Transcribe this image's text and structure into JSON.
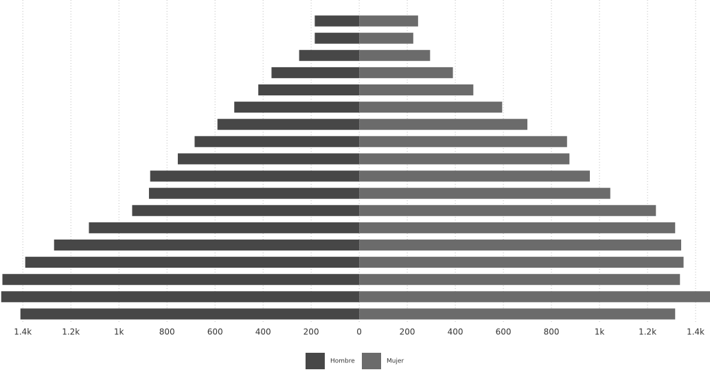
{
  "chart_data": {
    "type": "pyramid",
    "series": [
      {
        "name": "Hombre",
        "color": "#474747",
        "values": [
          -185,
          -185,
          -250,
          -365,
          -420,
          -520,
          -590,
          -685,
          -755,
          -870,
          -875,
          -945,
          -1125,
          -1270,
          -1390,
          -1485,
          -1490,
          -1410
        ]
      },
      {
        "name": "Mujer",
        "color": "#6b6b6b",
        "values": [
          245,
          225,
          295,
          390,
          475,
          595,
          700,
          865,
          875,
          960,
          1045,
          1235,
          1315,
          1340,
          1350,
          1335,
          1460,
          1315
        ]
      }
    ],
    "xlim": [
      -1495,
      1460
    ],
    "xticks": [
      {
        "value": -1400,
        "label": "1.4k"
      },
      {
        "value": -1200,
        "label": "1.2k"
      },
      {
        "value": -1000,
        "label": "1k"
      },
      {
        "value": -800,
        "label": "800"
      },
      {
        "value": -600,
        "label": "600"
      },
      {
        "value": -400,
        "label": "400"
      },
      {
        "value": -200,
        "label": "200"
      },
      0,
      200,
      400,
      600,
      800,
      {
        "value": 1000,
        "label": "1k"
      },
      {
        "value": 1200,
        "label": "1.2k"
      },
      {
        "value": 1400,
        "label": "1.4k"
      }
    ],
    "grid": true,
    "legend": "bottom"
  }
}
